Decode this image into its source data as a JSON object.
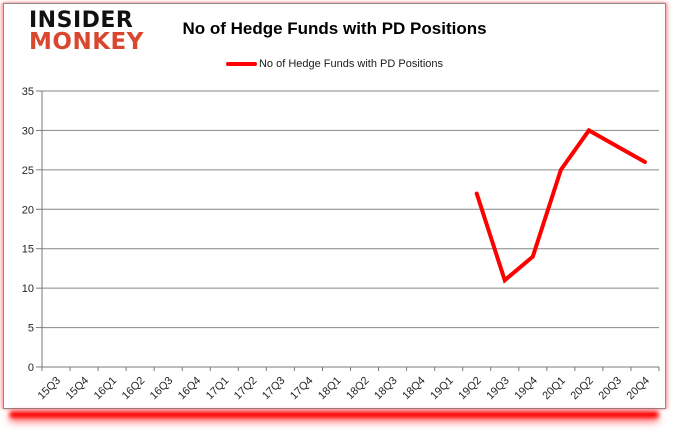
{
  "logo": {
    "line1": "INSIDER",
    "line2": "MONKEY"
  },
  "title": "No of Hedge Funds with PD Positions",
  "legend": {
    "label": "No of Hedge Funds with PD Positions"
  },
  "colors": {
    "series_red": "#ff0000",
    "gridline_gray": "#868686",
    "axis_gray": "#7a7a7a",
    "tick_text": "#262626",
    "logo_black": "#111111",
    "logo_red": "#d9472f",
    "glow_red": "#ff0000"
  },
  "chart_data": {
    "type": "line",
    "title": "No of Hedge Funds with PD Positions",
    "categories": [
      "15Q3",
      "15Q4",
      "16Q1",
      "16Q2",
      "16Q3",
      "16Q4",
      "17Q1",
      "17Q2",
      "17Q3",
      "17Q4",
      "18Q1",
      "18Q2",
      "18Q3",
      "18Q4",
      "19Q1",
      "19Q2",
      "19Q3",
      "19Q4",
      "20Q1",
      "20Q2",
      "20Q3",
      "20Q4"
    ],
    "series": [
      {
        "name": "No of Hedge Funds with PD Positions",
        "color": "#ff0000",
        "values": [
          null,
          null,
          null,
          null,
          null,
          null,
          null,
          null,
          null,
          null,
          null,
          null,
          null,
          null,
          null,
          22,
          11,
          14,
          25,
          30,
          28,
          26
        ]
      }
    ],
    "ylim": [
      0,
      35
    ],
    "yticks": [
      0,
      5,
      10,
      15,
      20,
      25,
      30,
      35
    ],
    "grid": "horizontal-only",
    "legend_position": "top-center",
    "xlabel": "",
    "ylabel": ""
  }
}
